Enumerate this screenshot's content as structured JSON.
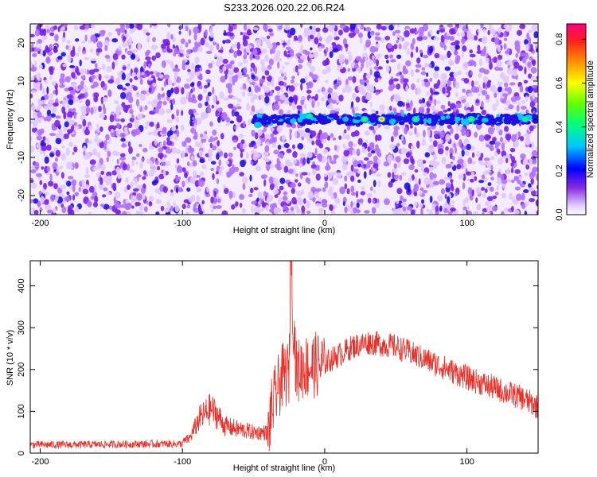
{
  "title": "S233.2026.020.22.06.R24",
  "colors": {
    "spectrogram_low": "#e8d8ff",
    "spectrogram_mid": "#7a2cf0",
    "spectrogram_high": "#3a00d8",
    "snr_line": "#e8302a"
  },
  "chart_data": [
    {
      "type": "heatmap",
      "xlabel": "Height of straight line (km)",
      "ylabel": "Frequency (Hz)",
      "xlim": [
        -207,
        150
      ],
      "ylim": [
        -25,
        25
      ],
      "xticks": [
        -200,
        -100,
        0,
        100
      ],
      "xtick_labels": [
        "-200",
        "-100",
        "0",
        "100"
      ],
      "yticks": [
        -20,
        -10,
        0,
        10,
        20
      ],
      "ytick_labels": [
        "-20",
        "-10",
        "0",
        "10",
        "20"
      ],
      "signal_band": {
        "frequency": 0,
        "x_start": -50,
        "x_end": 150
      },
      "gap_x": 41,
      "peaks": [
        {
          "x": -47,
          "y": -1.5,
          "amplitude": 0.35
        },
        {
          "x": -11,
          "y": 0.8,
          "amplitude": 0.45
        },
        {
          "x": 28,
          "y": 0,
          "amplitude": 0.5
        },
        {
          "x": 40,
          "y": 0,
          "amplitude": 0.7
        },
        {
          "x": 64,
          "y": 0,
          "amplitude": 0.5
        },
        {
          "x": 103,
          "y": 0,
          "amplitude": 0.5
        },
        {
          "x": 141,
          "y": 0,
          "amplitude": 0.45
        }
      ],
      "colorbar": {
        "label": "Normalized spectral amplitude",
        "range": [
          0.0,
          0.87
        ],
        "ticks": [
          0.0,
          0.2,
          0.4,
          0.6,
          0.8
        ],
        "tick_labels": [
          "0.0",
          "0.2",
          "0.4",
          "0.6",
          "0.8"
        ]
      }
    },
    {
      "type": "line",
      "xlabel": "Height of straight line (km)",
      "ylabel": "SNR (10 * v/v)",
      "xlim": [
        -207,
        150
      ],
      "ylim": [
        0,
        460
      ],
      "xticks": [
        -200,
        -100,
        0,
        100
      ],
      "xtick_labels": [
        "-200",
        "-100",
        "0",
        "100"
      ],
      "yticks": [
        0,
        100,
        200,
        300,
        400
      ],
      "ytick_labels": [
        "0",
        "100",
        "200",
        "300",
        "400"
      ],
      "series": [
        {
          "name": "SNR",
          "x": [
            -207,
            -180,
            -150,
            -120,
            -100,
            -95,
            -88,
            -80,
            -75,
            -70,
            -60,
            -50,
            -40,
            -38,
            -35,
            -30,
            -25,
            -24,
            -20,
            -15,
            -10,
            -5,
            0,
            10,
            20,
            30,
            40,
            50,
            60,
            80,
            100,
            120,
            140,
            150
          ],
          "values": [
            20,
            20,
            21,
            22,
            22,
            30,
            70,
            90,
            75,
            55,
            48,
            42,
            42,
            100,
            140,
            190,
            200,
            460,
            200,
            215,
            215,
            220,
            215,
            235,
            255,
            265,
            260,
            255,
            240,
            210,
            180,
            155,
            130,
            110
          ]
        }
      ]
    }
  ]
}
